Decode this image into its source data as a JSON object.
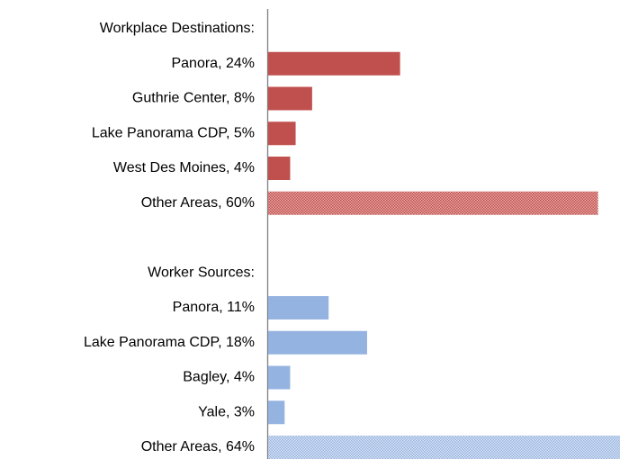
{
  "chart_data": {
    "type": "barh",
    "categories": [
      "Workplace Destinations:",
      "Panora, 24%",
      "Guthrie Center, 8%",
      "Lake Panorama CDP, 5%",
      "West Des Moines, 4%",
      "Other Areas, 60%",
      null,
      "Worker Sources:",
      "Panora, 11%",
      "Lake Panorama CDP, 18%",
      "Bagley, 4%",
      "Yale, 3%",
      "Other Areas, 64%"
    ],
    "values": [
      null,
      24,
      8,
      5,
      4,
      60,
      null,
      null,
      11,
      18,
      4,
      3,
      64
    ],
    "colors": [
      null,
      "#c0504d",
      "#c0504d",
      "#c0504d",
      "#c0504d",
      "#c0504d",
      null,
      null,
      "#95b3e0",
      "#95b3e0",
      "#95b3e0",
      "#95b3e0",
      "#95b3e0"
    ],
    "hatched": [
      false,
      false,
      false,
      false,
      false,
      true,
      false,
      false,
      false,
      false,
      false,
      false,
      true
    ],
    "xlim": [
      0,
      64
    ]
  }
}
